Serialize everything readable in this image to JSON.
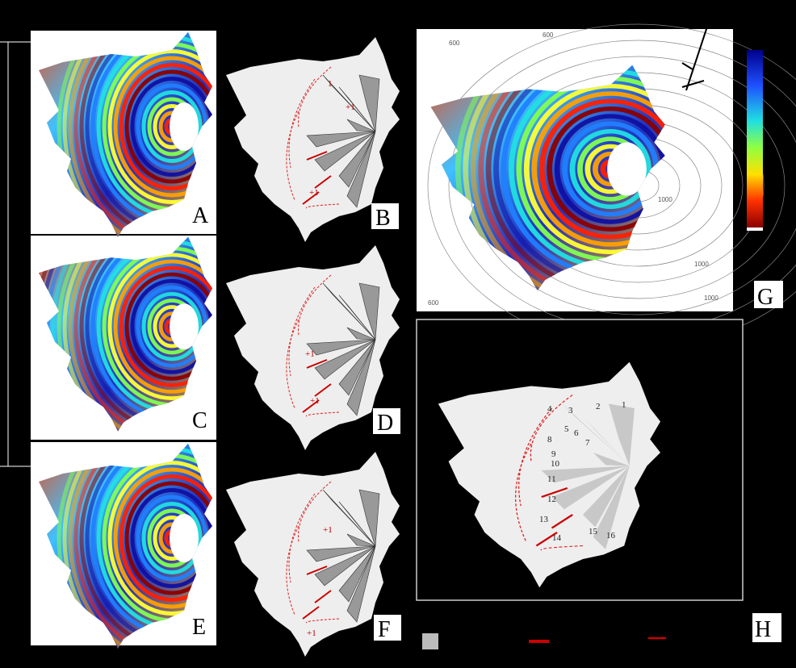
{
  "panels": {
    "A": {
      "label": "A"
    },
    "B": {
      "label": "B",
      "annotations": [
        "1",
        "+1",
        "+1"
      ]
    },
    "C": {
      "label": "C"
    },
    "D": {
      "label": "D",
      "annotations": [
        "+1",
        "+1"
      ]
    },
    "E": {
      "label": "E"
    },
    "F": {
      "label": "F",
      "annotations": [
        "+1",
        "+1"
      ]
    },
    "G": {
      "label": "G",
      "contours": [
        "600",
        "600",
        "600",
        "1000",
        "1000",
        "1000"
      ]
    },
    "H": {
      "label": "H",
      "regions": [
        "1",
        "2",
        "3",
        "4",
        "5",
        "6",
        "7",
        "8",
        "9",
        "10",
        "11",
        "12",
        "13",
        "14",
        "15",
        "16"
      ]
    }
  }
}
